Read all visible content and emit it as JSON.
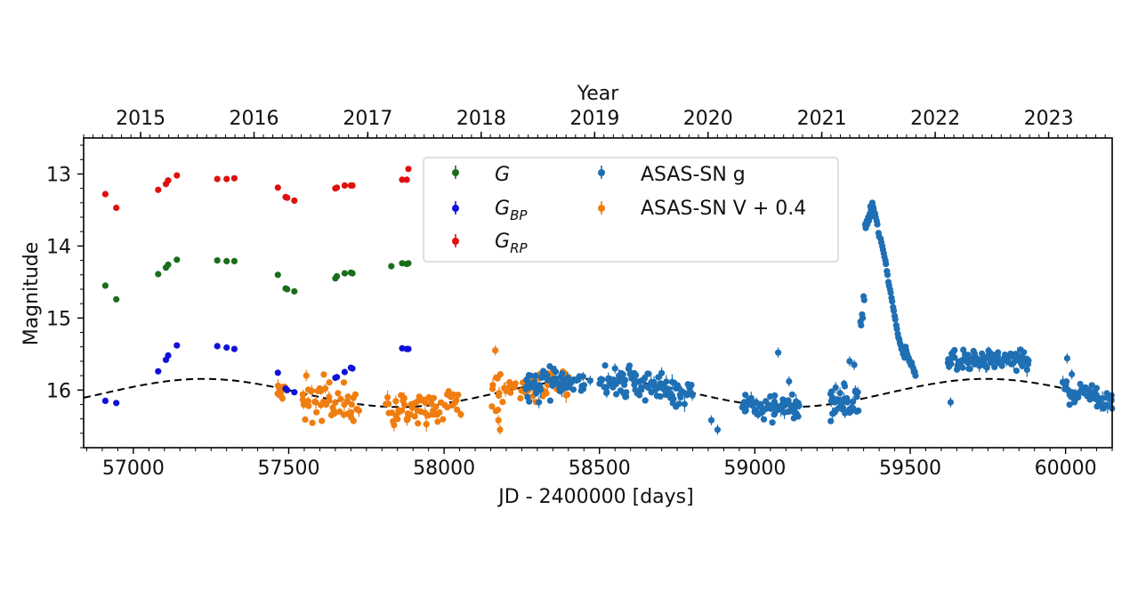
{
  "chart_data": {
    "type": "scatter",
    "xlabel": "JD - 2400000 [days]",
    "ylabel": "Magnitude",
    "top_xlabel": "Year",
    "xlim": [
      56840,
      60150
    ],
    "ylim": [
      16.8,
      12.5
    ],
    "y_inverted": true,
    "x_ticks": [
      57000,
      57500,
      58000,
      58500,
      59000,
      59500,
      60000
    ],
    "x_tick_labels": [
      "57000",
      "57500",
      "58000",
      "58500",
      "59000",
      "59500",
      "60000"
    ],
    "y_ticks": [
      13,
      14,
      15,
      16
    ],
    "y_tick_labels": [
      "13",
      "14",
      "15",
      "16"
    ],
    "year_ticks": [
      {
        "label": "2015",
        "jd": 57023.5
      },
      {
        "label": "2016",
        "jd": 57388.5
      },
      {
        "label": "2017",
        "jd": 57754.5
      },
      {
        "label": "2018",
        "jd": 58119.5
      },
      {
        "label": "2019",
        "jd": 58484.5
      },
      {
        "label": "2020",
        "jd": 58849.5
      },
      {
        "label": "2021",
        "jd": 59215.5
      },
      {
        "label": "2022",
        "jd": 59580.5
      },
      {
        "label": "2023",
        "jd": 59945.5
      }
    ],
    "legend": {
      "position": "upper-center",
      "columns": 2
    },
    "series": [
      {
        "name": "G",
        "sub": "",
        "color": "#1a6e1a",
        "points": [
          [
            56910,
            14.55
          ],
          [
            56945,
            14.74
          ],
          [
            57080,
            14.39
          ],
          [
            57105,
            14.3
          ],
          [
            57112,
            14.26
          ],
          [
            57140,
            14.19
          ],
          [
            57270,
            14.2
          ],
          [
            57300,
            14.21
          ],
          [
            57325,
            14.21
          ],
          [
            57465,
            14.4
          ],
          [
            57490,
            14.59
          ],
          [
            57495,
            14.6
          ],
          [
            57518,
            14.63
          ],
          [
            57650,
            14.45
          ],
          [
            57655,
            14.42
          ],
          [
            57680,
            14.38
          ],
          [
            57700,
            14.37
          ],
          [
            57705,
            14.38
          ],
          [
            57830,
            14.28
          ],
          [
            57865,
            14.24
          ],
          [
            57880,
            14.25
          ],
          [
            57885,
            14.24
          ]
        ]
      },
      {
        "name": "G",
        "sub": "BP",
        "color": "#1010d8",
        "points": [
          [
            56910,
            16.15
          ],
          [
            56945,
            16.18
          ],
          [
            57080,
            15.74
          ],
          [
            57105,
            15.58
          ],
          [
            57112,
            15.52
          ],
          [
            57140,
            15.38
          ],
          [
            57270,
            15.39
          ],
          [
            57300,
            15.41
          ],
          [
            57325,
            15.43
          ],
          [
            57465,
            15.76
          ],
          [
            57490,
            15.98
          ],
          [
            57495,
            16.0
          ],
          [
            57518,
            16.03
          ],
          [
            57650,
            15.83
          ],
          [
            57655,
            15.82
          ],
          [
            57680,
            15.75
          ],
          [
            57700,
            15.69
          ],
          [
            57705,
            15.7
          ],
          [
            57865,
            15.42
          ],
          [
            57880,
            15.43
          ],
          [
            57885,
            15.43
          ]
        ]
      },
      {
        "name": "G",
        "sub": "RP",
        "color": "#e01010",
        "points": [
          [
            56910,
            13.28
          ],
          [
            56945,
            13.47
          ],
          [
            57080,
            13.22
          ],
          [
            57105,
            13.14
          ],
          [
            57112,
            13.09
          ],
          [
            57140,
            13.02
          ],
          [
            57270,
            13.07
          ],
          [
            57300,
            13.07
          ],
          [
            57325,
            13.06
          ],
          [
            57465,
            13.19
          ],
          [
            57490,
            13.32
          ],
          [
            57495,
            13.33
          ],
          [
            57518,
            13.37
          ],
          [
            57650,
            13.2
          ],
          [
            57655,
            13.19
          ],
          [
            57680,
            13.16
          ],
          [
            57700,
            13.16
          ],
          [
            57705,
            13.16
          ],
          [
            57865,
            13.08
          ],
          [
            57880,
            13.08
          ],
          [
            57885,
            12.93
          ]
        ]
      }
    ],
    "asassn_g": {
      "name": "ASAS-SN g",
      "color": "#1f6fb4",
      "segments": [
        {
          "x0": 58260,
          "x1": 58450,
          "offset": 0.0,
          "noise": 0.09
        },
        {
          "x0": 58500,
          "x1": 58800,
          "offset": 0.03,
          "noise": 0.1
        },
        {
          "x0": 58960,
          "x1": 59140,
          "offset": 0.02,
          "noise": 0.08
        },
        {
          "x0": 59240,
          "x1": 59330,
          "offset": 0.0,
          "noise": 0.12
        },
        {
          "x0": 59620,
          "x1": 59880,
          "offset": -0.28,
          "noise": 0.07
        },
        {
          "x0": 59990,
          "x1": 60150,
          "offset": 0.02,
          "noise": 0.08
        }
      ],
      "outburst": [
        [
          59340,
          15.05
        ],
        [
          59345,
          14.95
        ],
        [
          59350,
          14.7
        ],
        [
          59355,
          13.7
        ],
        [
          59360,
          13.65
        ],
        [
          59365,
          13.6
        ],
        [
          59370,
          13.55
        ],
        [
          59372,
          13.45
        ],
        [
          59378,
          13.4
        ],
        [
          59382,
          13.48
        ],
        [
          59387,
          13.55
        ],
        [
          59392,
          13.65
        ],
        [
          59398,
          13.82
        ],
        [
          59405,
          13.9
        ],
        [
          59410,
          14.0
        ],
        [
          59415,
          14.1
        ],
        [
          59420,
          14.2
        ],
        [
          59425,
          14.35
        ],
        [
          59430,
          14.5
        ],
        [
          59435,
          14.6
        ],
        [
          59440,
          14.72
        ],
        [
          59445,
          14.85
        ],
        [
          59450,
          14.97
        ],
        [
          59455,
          15.1
        ],
        [
          59460,
          15.22
        ],
        [
          59465,
          15.3
        ],
        [
          59470,
          15.38
        ],
        [
          59475,
          15.45
        ],
        [
          59480,
          15.5
        ],
        [
          59485,
          15.4
        ],
        [
          59490,
          15.5
        ],
        [
          59495,
          15.55
        ],
        [
          59500,
          15.6
        ],
        [
          59505,
          15.62
        ],
        [
          59510,
          15.7
        ],
        [
          59515,
          15.75
        ]
      ],
      "extras": [
        [
          58860,
          16.42
        ],
        [
          58880,
          16.55
        ],
        [
          59000,
          16.3
        ],
        [
          59060,
          16.25
        ],
        [
          59075,
          15.48
        ],
        [
          59110,
          15.88
        ],
        [
          59290,
          16.32
        ],
        [
          59305,
          15.6
        ],
        [
          59320,
          15.65
        ],
        [
          59630,
          16.17
        ],
        [
          59655,
          15.65
        ],
        [
          60005,
          15.56
        ],
        [
          60020,
          15.78
        ],
        [
          58470,
          15.87
        ],
        [
          58550,
          15.7
        ]
      ]
    },
    "asassn_v": {
      "name": "ASAS-SN V + 0.4",
      "color": "#f07d0f",
      "segments": [
        {
          "x0": 57460,
          "x1": 57485,
          "offset": 0.0,
          "noise": 0.07
        },
        {
          "x0": 57540,
          "x1": 57720,
          "offset": 0.03,
          "noise": 0.12
        },
        {
          "x0": 57810,
          "x1": 58050,
          "offset": 0.04,
          "noise": 0.1
        },
        {
          "x0": 58150,
          "x1": 58230,
          "offset": 0.02,
          "noise": 0.12
        },
        {
          "x0": 58240,
          "x1": 58400,
          "offset": 0.02,
          "noise": 0.12
        }
      ],
      "extras": [
        [
          58165,
          15.45
        ],
        [
          58175,
          16.42
        ],
        [
          58180,
          16.55
        ],
        [
          57470,
          16.05
        ]
      ]
    },
    "model": {
      "style": "dashed",
      "color": "#000000",
      "mean": 16.04,
      "amplitude": 0.195,
      "period": 1260,
      "peak_jd": 57225
    }
  }
}
